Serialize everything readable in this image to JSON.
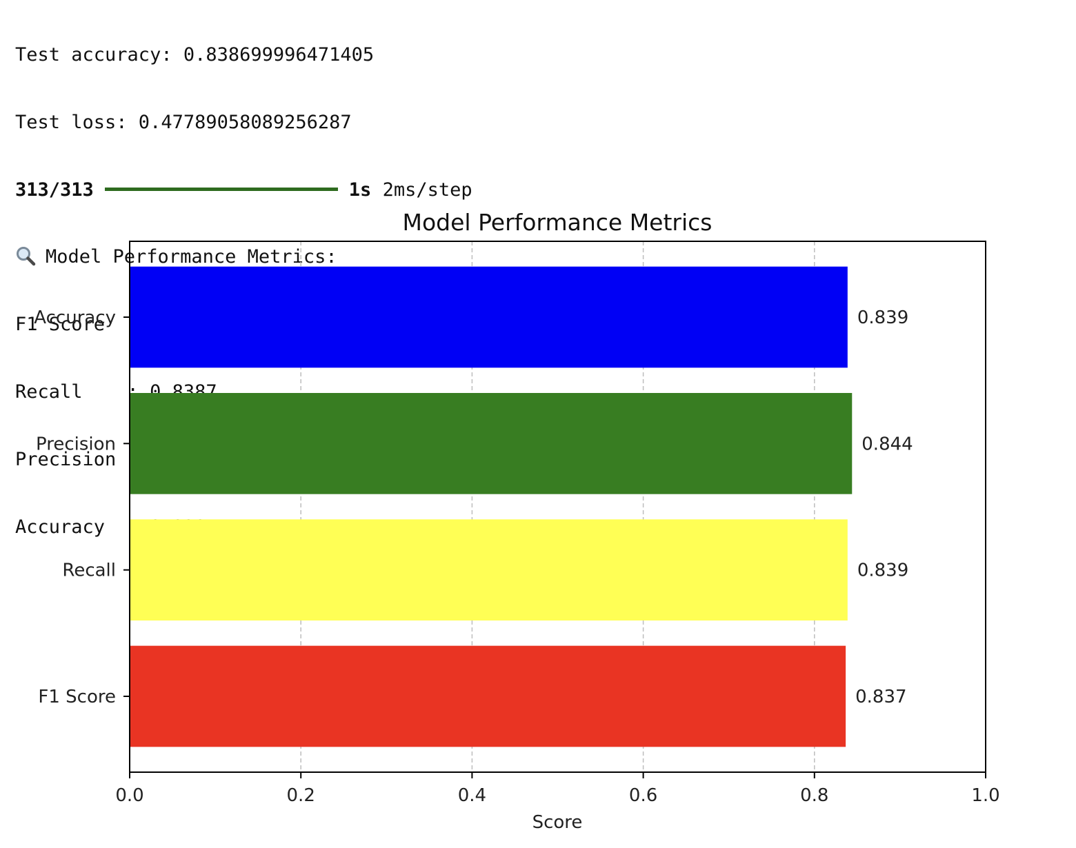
{
  "console": {
    "test_accuracy": "Test accuracy: 0.838699996471405",
    "test_loss": "Test loss: 0.47789058089256287",
    "progress": {
      "steps": "313/313",
      "fraction_complete": 1.0,
      "bar_color": "#2e6b1f",
      "time": "1s",
      "rate": "2ms/step"
    },
    "metrics_heading": "Model Performance Metrics:",
    "metrics_heading_icon": "magnifying-glass-icon",
    "metric_lines": [
      "F1 Score  : 0.8365",
      "Recall    : 0.8387",
      "Precision : 0.8439",
      "Accuracy  : 0.8387"
    ]
  },
  "chart_data": {
    "type": "bar",
    "orientation": "horizontal",
    "title": "Model Performance Metrics",
    "xlabel": "Score",
    "ylabel": "",
    "xlim": [
      0,
      1.0
    ],
    "xticks": [
      "0.0",
      "0.2",
      "0.4",
      "0.6",
      "0.8",
      "1.0"
    ],
    "grid": "vertical dashed",
    "categories": [
      "Accuracy",
      "Precision",
      "Recall",
      "F1 Score"
    ],
    "values": [
      0.8387,
      0.8439,
      0.8387,
      0.8365
    ],
    "value_labels": [
      "0.839",
      "0.844",
      "0.839",
      "0.837"
    ],
    "colors": [
      "#0000f5",
      "#387d22",
      "#ffff55",
      "#e93423"
    ]
  }
}
